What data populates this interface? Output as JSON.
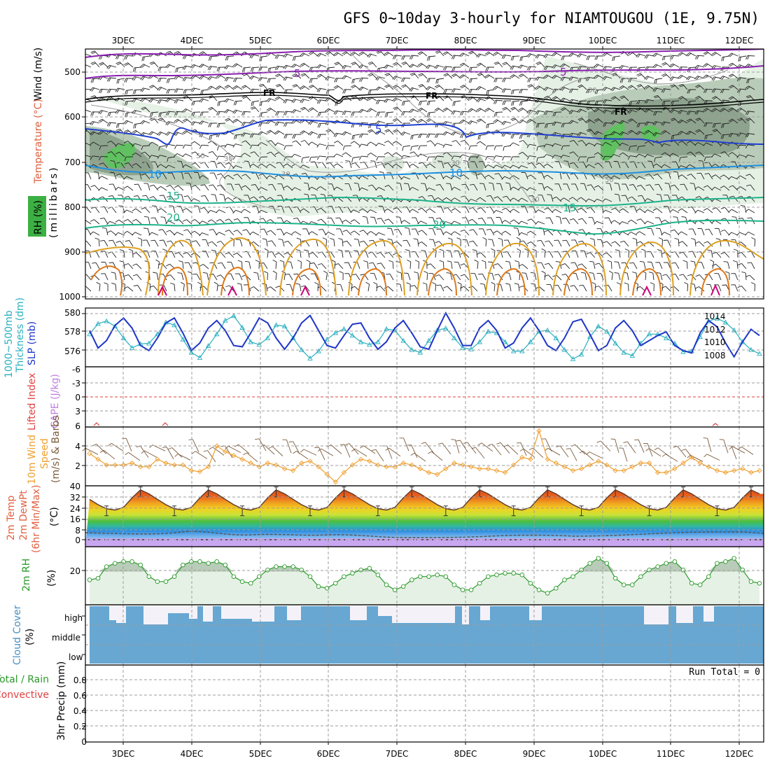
{
  "title": "GFS 0~10day 3-hourly for NIAMTOUGOU (1E, 9.75N)",
  "dates": [
    "3DEC",
    "4DEC",
    "5DEC",
    "6DEC",
    "7DEC",
    "8DEC",
    "9DEC",
    "10DEC",
    "11DEC",
    "12DEC"
  ],
  "colors": {
    "frame": "#000000",
    "grid": "#9e9e9e",
    "rh_light": "#e6f1e6",
    "rh_mid": "#b9ccb9",
    "rh_dark": "#7d917d",
    "rh_green": "#5fc15f",
    "temp_purple": "#8a1fb0",
    "freeze": "#000000",
    "temp_blue": "#1f3fd0",
    "temp_sky": "#1e90e0",
    "temp_teal": "#1db38a",
    "temp_gold": "#e0a020",
    "temp_orange": "#e07818",
    "temp_magenta": "#d0007a",
    "thickness": "#1e36c8",
    "slp": "#2ab0c0",
    "wind10": "#f0a030",
    "cloud": "#67a7d2",
    "rh2m": "#2a9a2a",
    "lifted": "#e04040"
  },
  "panels": {
    "upper": {
      "ylabel_wind": "Wind (m/s)",
      "ylabel_temp": "Temperature (°C)",
      "ylabel_rh": "RH (%)",
      "ylabel_unit": "(millibars)",
      "ticks": [
        "500",
        "600",
        "700",
        "800",
        "900",
        "1000"
      ],
      "contour_labels": {
        "c5a": "5",
        "c5b": "5",
        "fr1": "FR",
        "fr2": "FR",
        "fr3": "FR",
        "c5c": "5",
        "c10a": "10",
        "c10b": "10",
        "c15a": "15",
        "c15b": "15",
        "c20a": "20",
        "c20b": "20",
        "r30a": "30",
        "r30b": "30",
        "r30c": "30",
        "r30d": "30",
        "r30e": "30",
        "r50a": "50",
        "r50b": "50"
      }
    },
    "thickness": {
      "ylabel_a": "1000~500mb",
      "ylabel_b": "Thickness (dm)",
      "ylabel_slp": "SLP (mb)",
      "left_ticks": [
        "580",
        "578",
        "576"
      ],
      "right_ticks": [
        "1014",
        "1012",
        "1010",
        "1008"
      ]
    },
    "cape": {
      "ylabel_lifted": "Lifted Index",
      "ylabel_cape": "CAPE (J/kg)",
      "ticks": [
        "-6",
        "-3",
        "0",
        "3",
        "6"
      ]
    },
    "wind10": {
      "ylabel_a": "10m Wind",
      "ylabel_b": "Speed",
      "ylabel_c": "(m/s) & Barbs",
      "ticks": [
        "4",
        "2"
      ]
    },
    "temp2m": {
      "ylabel_a": "2m Temp",
      "ylabel_b": "2m DewPt",
      "ylabel_c": "(6hr Min/Max)",
      "ylabel_unit": "(°C)",
      "ticks": [
        "40",
        "32",
        "24",
        "16",
        "8",
        "0"
      ]
    },
    "rh2m": {
      "ylabel_a": "2m RH",
      "ylabel_unit": "(%)",
      "ticks": [
        "20"
      ]
    },
    "cloud": {
      "ylabel_a": "Cloud Cover",
      "ylabel_unit": "(%)",
      "levels": [
        "high",
        "middle",
        "low"
      ]
    },
    "precip": {
      "ylabel_a": "Total / Rain",
      "ylabel_b": "Convective",
      "ylabel_unit": "3hr Precip (mm)",
      "ticks": [
        "0.8",
        "0.6",
        "0.4",
        "0.2",
        "0"
      ],
      "run_total": "Run Total = 0"
    }
  },
  "chart_data": [
    {
      "type": "line",
      "name": "thickness_1000_500",
      "x_time_hours": [
        0,
        3,
        6,
        9,
        12,
        15,
        18,
        21,
        24,
        27,
        30,
        33,
        36,
        39,
        42,
        45,
        48,
        51,
        54,
        57,
        60,
        63,
        66,
        69,
        72,
        75,
        78,
        81,
        84,
        87,
        90,
        93,
        96,
        99,
        102,
        105,
        108,
        111,
        114,
        117,
        120,
        123,
        126,
        129,
        132,
        135,
        138,
        141,
        144,
        147,
        150,
        153,
        156,
        159,
        162,
        165,
        168,
        171,
        174,
        177,
        180,
        183,
        186,
        189,
        192,
        195,
        198,
        201,
        204,
        207,
        210,
        213,
        216,
        219,
        222,
        225,
        228,
        231,
        234,
        237
      ],
      "values_dm": [
        578.2,
        576.8,
        577.4,
        578.6,
        579.2,
        578.4,
        577.0,
        576.6,
        577.6,
        578.8,
        579.2,
        578.0,
        576.6,
        577.2,
        578.4,
        579.0,
        578.2,
        577.0,
        576.9,
        578.0,
        579.2,
        578.8,
        577.6,
        576.7,
        577.6,
        578.8,
        579.4,
        578.2,
        577.0,
        576.8,
        577.8,
        578.7,
        578.8,
        577.6,
        576.7,
        577.3,
        578.4,
        579.0,
        578.0,
        576.9,
        576.7,
        578.2,
        579.6,
        578.4,
        577.0,
        577.0,
        578.4,
        579.0,
        578.2,
        576.8,
        577.2,
        578.4,
        579.2,
        578.2,
        577.0,
        576.6,
        577.6,
        578.9,
        579.1,
        577.9,
        576.6,
        577.0,
        578.4,
        579.0,
        578.2,
        577.0,
        577.4,
        577.8,
        578.1,
        577.0,
        576.6,
        576.4,
        578.0,
        579.0,
        578.5,
        577.2,
        576.1,
        577.3,
        578.3,
        577.8
      ],
      "ylim": [
        575.3,
        580
      ]
    },
    {
      "type": "line",
      "name": "slp",
      "x_time_hours": [
        0,
        3,
        6,
        9,
        12,
        15,
        18,
        21,
        24,
        27,
        30,
        33,
        36,
        39,
        42,
        45,
        48,
        51,
        54,
        57,
        60,
        63,
        66,
        69,
        72,
        75,
        78,
        81,
        84,
        87,
        90,
        93,
        96,
        99,
        102,
        105,
        108,
        111,
        114,
        117,
        120,
        123,
        126,
        129,
        132,
        135,
        138,
        141,
        144,
        147,
        150,
        153,
        156,
        159,
        162,
        165,
        168,
        171,
        174,
        177,
        180,
        183,
        186,
        189,
        192,
        195,
        198,
        201,
        204,
        207,
        210,
        213,
        216,
        219,
        222,
        225,
        228,
        231,
        234,
        237
      ],
      "values_mb": [
        1011.0,
        1012.6,
        1013.0,
        1012.2,
        1010.4,
        1008.9,
        1009.5,
        1009.6,
        1011.0,
        1012.8,
        1012.4,
        1010.2,
        1008.2,
        1007.4,
        1009.2,
        1011.0,
        1013.1,
        1013.8,
        1012.0,
        1009.8,
        1009.4,
        1010.4,
        1012.4,
        1012.2,
        1010.4,
        1008.6,
        1007.3,
        1008.4,
        1010.2,
        1011.2,
        1011.8,
        1010.8,
        1009.8,
        1009.4,
        1009.8,
        1011.8,
        1011.6,
        1010.0,
        1008.6,
        1008.2,
        1010.0,
        1011.6,
        1011.9,
        1010.4,
        1008.9,
        1008.7,
        1009.8,
        1011.4,
        1011.2,
        1009.8,
        1008.4,
        1008.4,
        1009.8,
        1011.4,
        1011.6,
        1010.4,
        1008.6,
        1007.2,
        1007.9,
        1010.6,
        1012.2,
        1011.4,
        1009.6,
        1008.2,
        1007.7,
        1009.6,
        1011.0,
        1011.0,
        1010.4,
        1009.6,
        1008.3,
        1008.4,
        1010.6,
        1013.0,
        1013.4,
        1012.8,
        1011.6,
        1009.8,
        1008.6,
        1008.0
      ],
      "ylim": [
        1006,
        1015
      ]
    },
    {
      "type": "line",
      "name": "wind_speed_10m",
      "x_time_hours": [
        0,
        3,
        6,
        9,
        12,
        15,
        18,
        21,
        24,
        27,
        30,
        33,
        36,
        39,
        42,
        45,
        48,
        51,
        54,
        57,
        60,
        63,
        66,
        69,
        72,
        75,
        78,
        81,
        84,
        87,
        90,
        93,
        96,
        99,
        102,
        105,
        108,
        111,
        114,
        117,
        120,
        123,
        126,
        129,
        132,
        135,
        138,
        141,
        144,
        147,
        150,
        153,
        156,
        159,
        162,
        165,
        168,
        171,
        174,
        177,
        180,
        183,
        186,
        189,
        192,
        195,
        198,
        201,
        204,
        207,
        210,
        213,
        216,
        219,
        222,
        225,
        228,
        231,
        234,
        237
      ],
      "values_ms": [
        3.4,
        2.8,
        2.2,
        2.2,
        2.2,
        2.4,
        2.0,
        2.0,
        2.8,
        2.4,
        2.2,
        2.2,
        1.6,
        1.5,
        2.0,
        4.2,
        3.6,
        3.2,
        2.8,
        2.4,
        2.0,
        2.4,
        2.2,
        1.8,
        1.6,
        2.4,
        2.6,
        2.0,
        1.2,
        0.4,
        1.4,
        2.2,
        2.8,
        2.6,
        2.2,
        2.0,
        2.0,
        2.4,
        2.2,
        1.8,
        1.4,
        1.2,
        1.8,
        2.4,
        2.2,
        2.0,
        1.8,
        1.8,
        1.6,
        1.4,
        2.2,
        3.0,
        2.8,
        5.8,
        2.8,
        2.4,
        2.0,
        1.6,
        1.8,
        2.2,
        2.6,
        2.2,
        1.6,
        1.6,
        2.0,
        2.4,
        2.4,
        1.4,
        1.4,
        1.8,
        2.4,
        3.0,
        2.4,
        2.0,
        1.6,
        1.4,
        1.6,
        1.8,
        1.4,
        1.6
      ],
      "ylim": [
        0,
        6.2
      ]
    },
    {
      "type": "line",
      "name": "rh_2m",
      "x_time_hours": [
        0,
        3,
        6,
        9,
        12,
        15,
        18,
        21,
        24,
        27,
        30,
        33,
        36,
        39,
        42,
        45,
        48,
        51,
        54,
        57,
        60,
        63,
        66,
        69,
        72,
        75,
        78,
        81,
        84,
        87,
        90,
        93,
        96,
        99,
        102,
        105,
        108,
        111,
        114,
        117,
        120,
        123,
        126,
        129,
        132,
        135,
        138,
        141,
        144,
        147,
        150,
        153,
        156,
        159,
        162,
        165,
        168,
        171,
        174,
        177,
        180,
        183,
        186,
        189,
        192,
        195,
        198,
        201,
        204,
        207,
        210,
        213,
        216,
        219,
        222,
        225,
        228,
        231,
        234,
        237
      ],
      "values_pct": [
        15,
        16,
        23,
        25,
        26,
        26,
        24,
        17,
        14,
        14,
        17,
        24,
        26,
        26,
        25,
        26,
        24,
        17,
        14,
        13,
        17,
        21,
        23,
        23,
        23,
        21,
        17,
        11,
        10,
        13,
        17,
        19,
        21,
        22,
        18,
        12,
        9,
        11,
        15,
        17,
        17,
        18,
        17,
        12,
        9,
        9,
        13,
        17,
        18,
        19,
        19,
        18,
        13,
        9,
        7,
        10,
        15,
        17,
        21,
        25,
        28,
        25,
        16,
        12,
        12,
        17,
        21,
        23,
        25,
        26,
        21,
        13,
        12,
        17,
        25,
        26,
        28,
        21,
        14,
        13
      ],
      "ylim": [
        0,
        35
      ]
    },
    {
      "type": "area",
      "name": "temp_2m",
      "x_time_hours": [
        0,
        3,
        6,
        9,
        12,
        15,
        18,
        21,
        24,
        27,
        30,
        33,
        36,
        39,
        42,
        45,
        48,
        51,
        54,
        57,
        60,
        63,
        66,
        69,
        72,
        75,
        78,
        81,
        84,
        87,
        90,
        93,
        96,
        99,
        102,
        105,
        108,
        111,
        114,
        117,
        120,
        123,
        126,
        129,
        132,
        135,
        138,
        141,
        144,
        147,
        150,
        153,
        156,
        159,
        162,
        165,
        168,
        171,
        174,
        177,
        180,
        183,
        186,
        189,
        192,
        195,
        198,
        201,
        204,
        207,
        210,
        213,
        216,
        219,
        222,
        225,
        228,
        231,
        234,
        237
      ],
      "values_c": [
        30,
        26,
        23,
        22,
        24,
        31,
        37,
        34,
        30,
        26,
        23,
        22,
        24,
        31,
        37,
        34,
        30,
        26,
        23,
        22,
        24,
        31,
        37,
        34,
        30,
        26,
        23,
        22,
        24,
        31,
        37,
        34,
        30,
        26,
        23,
        22,
        24,
        31,
        37,
        34,
        30,
        26,
        23,
        22,
        24,
        31,
        37,
        34,
        30,
        26,
        23,
        22,
        24,
        31,
        37,
        34,
        30,
        26,
        23,
        22,
        24,
        31,
        37,
        34,
        30,
        26,
        23,
        22,
        24,
        31,
        37,
        34,
        30,
        26,
        23,
        22,
        24,
        31,
        37,
        34
      ],
      "ylim": [
        -4,
        40
      ]
    }
  ]
}
